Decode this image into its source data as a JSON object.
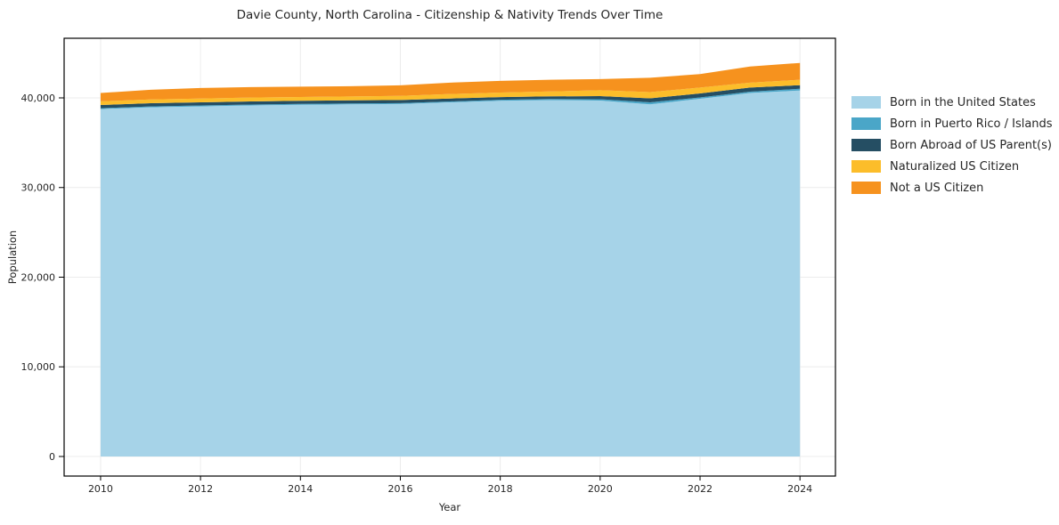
{
  "chart_data": {
    "type": "area",
    "stacked": true,
    "title": "Davie County, North Carolina - Citizenship & Nativity Trends Over Time",
    "xlabel": "Year",
    "ylabel": "Population",
    "x": [
      2010,
      2011,
      2012,
      2013,
      2014,
      2015,
      2016,
      2017,
      2018,
      2019,
      2020,
      2021,
      2022,
      2023,
      2024
    ],
    "series": [
      {
        "name": "Born in the United States",
        "color": "#a6d3e8",
        "values": [
          38750,
          38950,
          39050,
          39150,
          39230,
          39280,
          39320,
          39500,
          39680,
          39750,
          39700,
          39280,
          39900,
          40550,
          40820
        ]
      },
      {
        "name": "Born in Puerto Rico / Islands",
        "color": "#4aa6c8",
        "values": [
          100,
          100,
          100,
          100,
          100,
          100,
          100,
          100,
          110,
          120,
          150,
          220,
          150,
          150,
          200
        ]
      },
      {
        "name": "Born Abroad of US Parent(s)",
        "color": "#254e63",
        "values": [
          350,
          350,
          350,
          350,
          350,
          350,
          350,
          330,
          300,
          300,
          350,
          450,
          450,
          450,
          400
        ]
      },
      {
        "name": "Naturalized US Citizen",
        "color": "#fcbd2a",
        "values": [
          420,
          420,
          420,
          440,
          420,
          430,
          450,
          500,
          510,
          550,
          650,
          700,
          650,
          550,
          600
        ]
      },
      {
        "name": "Not a US Citizen",
        "color": "#f6921e",
        "values": [
          930,
          1080,
          1180,
          1160,
          1150,
          1140,
          1180,
          1270,
          1300,
          1300,
          1250,
          1600,
          1500,
          1800,
          1880
        ]
      }
    ],
    "xticks": [
      2010,
      2012,
      2014,
      2016,
      2018,
      2020,
      2022,
      2024
    ],
    "xtick_labels": [
      "2010",
      "2012",
      "2014",
      "2016",
      "2018",
      "2020",
      "2022",
      "2024"
    ],
    "yticks": [
      0,
      10000,
      20000,
      30000,
      40000
    ],
    "ytick_labels": [
      "0",
      "10,000",
      "20,000",
      "30,000",
      "40,000"
    ],
    "xlim": [
      2009.27,
      2024.71
    ],
    "ylim": [
      -2184,
      46650
    ],
    "grid": true,
    "grid_color": "#ececec",
    "spine_color": "#000000",
    "background_color": "#ffffff",
    "legend_position": "outside-right"
  }
}
